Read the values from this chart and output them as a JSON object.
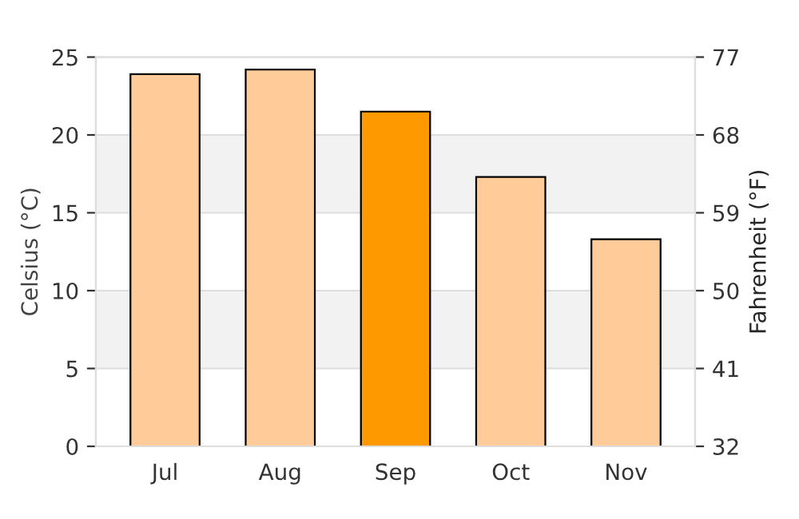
{
  "chart_data": {
    "type": "bar",
    "ylabel": "Celsius (°C)",
    "y2label": "Fahrenheit (°F)",
    "categories": [
      "Jul",
      "Aug",
      "Sep",
      "Oct",
      "Nov"
    ],
    "values": [
      23.9,
      24.2,
      21.5,
      17.3,
      13.3
    ],
    "colors": [
      "#ffcc99",
      "#ffcc99",
      "#ff9900",
      "#ffcc99",
      "#ffcc99"
    ],
    "ylim": [
      0,
      25
    ],
    "yticks": [
      0,
      5,
      10,
      15,
      20,
      25
    ],
    "y2lim": [
      32,
      77
    ],
    "y2ticks": [
      32,
      41,
      50,
      59,
      68,
      77
    ],
    "bands": [
      {
        "axis": "y",
        "from": 5,
        "to": 10,
        "color": "#f2f2f2"
      },
      {
        "axis": "y",
        "from": 15,
        "to": 20,
        "color": "#f2f2f2"
      }
    ],
    "grid": "y"
  }
}
